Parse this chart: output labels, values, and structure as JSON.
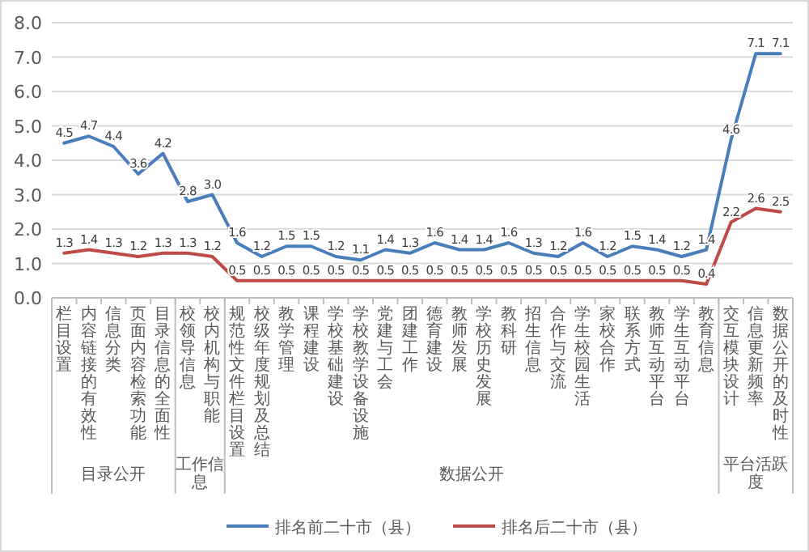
{
  "chart_data": {
    "type": "line",
    "categories": [
      "栏目设置",
      "内容链接的有效性",
      "信息分类",
      "页面内容检索功能",
      "目录信息的全面性",
      "校领导信息",
      "校内机构与职能",
      "规范性文件栏目设置",
      "校级年度规划及总结",
      "教学管理",
      "课程建设",
      "学校基础建设",
      "学校教学设备设施",
      "党建与工会",
      "团建工作",
      "德育建设",
      "教师发展",
      "学校历史发展",
      "教科研",
      "招生信息",
      "合作与交流",
      "学生校园生活",
      "家校合作",
      "联系方式",
      "教师互动平台",
      "学生互动平台",
      "教育信息",
      "交互模块设计",
      "信息更新频率",
      "数据公开的及时性"
    ],
    "series": [
      {
        "name": "排名前二十市（县）",
        "color": "#4a7ebb",
        "values": [
          4.5,
          4.7,
          4.4,
          3.6,
          4.2,
          2.8,
          3.0,
          1.6,
          1.2,
          1.5,
          1.5,
          1.2,
          1.1,
          1.4,
          1.3,
          1.6,
          1.4,
          1.4,
          1.6,
          1.3,
          1.2,
          1.6,
          1.2,
          1.5,
          1.4,
          1.2,
          1.4,
          4.6,
          7.1,
          7.1
        ],
        "value_labels": [
          "4.5",
          "4.7",
          "4.4",
          "3.6",
          "4.2",
          "2.8",
          "3.0",
          "1.6",
          "1.2",
          "1.5",
          "1.5",
          "1.2",
          "1.1",
          "1.4",
          "1.3",
          "1.6",
          "1.4",
          "1.4",
          "1.6",
          "1.3",
          "1.2",
          "1.6",
          "1.2",
          "1.5",
          "1.4",
          "1.2",
          "1.4",
          "4.6",
          "7.1",
          "7.1"
        ]
      },
      {
        "name": "排名后二十市（县）",
        "color": "#be4b48",
        "values": [
          1.3,
          1.4,
          1.3,
          1.2,
          1.3,
          1.3,
          1.2,
          0.5,
          0.5,
          0.5,
          0.5,
          0.5,
          0.5,
          0.5,
          0.5,
          0.5,
          0.5,
          0.5,
          0.5,
          0.5,
          0.5,
          0.5,
          0.5,
          0.5,
          0.5,
          0.5,
          0.4,
          2.2,
          2.6,
          2.5
        ],
        "value_labels": [
          "1.3",
          "1.4",
          "1.3",
          "1.2",
          "1.3",
          "1.3",
          "1.2",
          "0.5",
          "0.5",
          "0.5",
          "0.5",
          "0.5",
          "0.5",
          "0.5",
          "0.5",
          "0.5",
          "0.5",
          "0.5",
          "0.5",
          "0.5",
          "0.5",
          "0.5",
          "0.5",
          "0.5",
          "0.5",
          "0.5",
          "0.4",
          "2.2",
          "2.6",
          "2.5"
        ]
      }
    ],
    "ylim": [
      0,
      8
    ],
    "yticks": [
      {
        "value": 0,
        "label": "0.0"
      },
      {
        "value": 1,
        "label": "1.0"
      },
      {
        "value": 2,
        "label": "2.0"
      },
      {
        "value": 3,
        "label": "3.0"
      },
      {
        "value": 4,
        "label": "4.0"
      },
      {
        "value": 5,
        "label": "5.0"
      },
      {
        "value": 6,
        "label": "6.0"
      },
      {
        "value": 7,
        "label": "7.0"
      },
      {
        "value": 8,
        "label": "8.0"
      }
    ],
    "annotations": [
      "目录公开",
      "工作信息",
      "数据公开",
      "平台活跃度"
    ],
    "grid": "y",
    "legend": "bottom",
    "marker": "none",
    "line_style": "solid"
  }
}
